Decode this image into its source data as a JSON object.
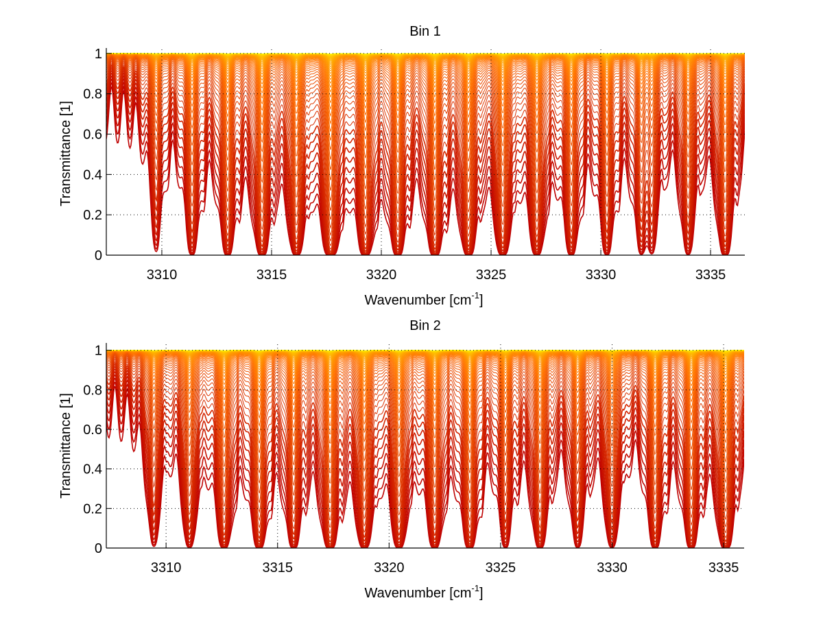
{
  "chart_data": [
    {
      "type": "line",
      "title": "Bin 1",
      "xlabel": "Wavenumber [cm",
      "xlabel_sup": "-1",
      "xlabel_end": "]",
      "ylabel": "Transmittance [1]",
      "xlim": [
        3307.47,
        3336.56
      ],
      "ylim": [
        0,
        1.02
      ],
      "xticks": [
        3310,
        3315,
        3320,
        3325,
        3330,
        3335
      ],
      "xtick_labels": [
        "3310",
        "3315",
        "3320",
        "3325",
        "3330",
        "3335"
      ],
      "yticks": [
        0,
        0.2,
        0.4,
        0.6,
        0.8,
        1
      ],
      "ytick_labels": [
        "0",
        "0.2",
        "0.4",
        "0.6",
        "0.8",
        "1"
      ],
      "grid": "dotted",
      "colormap": "autumn",
      "n_series": 60,
      "series_description": "Family of transmittance spectra T = exp(-k·τ(ν)), k spanning weak to strong absorption; colors run red (opaque) to yellow (transparent)",
      "absorption_lines": [
        {
          "center": 3309.75,
          "strength": 0.35
        },
        {
          "center": 3311.38,
          "strength": 0.6
        },
        {
          "center": 3313.0,
          "strength": 0.75
        },
        {
          "center": 3314.56,
          "strength": 0.9
        },
        {
          "center": 3316.13,
          "strength": 0.85
        },
        {
          "center": 3317.69,
          "strength": 1.2
        },
        {
          "center": 3319.28,
          "strength": 1.0
        },
        {
          "center": 3320.75,
          "strength": 0.9
        },
        {
          "center": 3322.44,
          "strength": 1.0
        },
        {
          "center": 3323.97,
          "strength": 0.9
        },
        {
          "center": 3325.53,
          "strength": 0.85
        },
        {
          "center": 3327.09,
          "strength": 0.8
        },
        {
          "center": 3328.66,
          "strength": 0.7
        },
        {
          "center": 3330.28,
          "strength": 0.6
        },
        {
          "center": 3331.84,
          "strength": 0.45
        },
        {
          "center": 3332.31,
          "strength": 0.4
        },
        {
          "center": 3333.97,
          "strength": 0.55
        },
        {
          "center": 3335.66,
          "strength": 0.8
        }
      ]
    },
    {
      "type": "line",
      "title": "Bin 2",
      "xlabel": "Wavenumber [cm",
      "xlabel_sup": "-1",
      "xlabel_end": "]",
      "ylabel": "Transmittance [1]",
      "xlim": [
        3307.32,
        3335.92
      ],
      "ylim": [
        0,
        1.03
      ],
      "xticks": [
        3310,
        3315,
        3320,
        3325,
        3330,
        3335
      ],
      "xtick_labels": [
        "3310",
        "3315",
        "3320",
        "3325",
        "3330",
        "3335"
      ],
      "yticks": [
        0,
        0.2,
        0.4,
        0.6,
        0.8,
        1
      ],
      "ytick_labels": [
        "0",
        "0.2",
        "0.4",
        "0.6",
        "0.8",
        "1"
      ],
      "grid": "dotted",
      "colormap": "autumn",
      "n_series": 60,
      "series_description": "Family of transmittance spectra T = exp(-k·τ(ν)), k spanning weak to strong absorption; colors run red (opaque) to yellow (transparent)",
      "absorption_lines": [
        {
          "center": 3309.45,
          "strength": 0.45
        },
        {
          "center": 3311.05,
          "strength": 0.6
        },
        {
          "center": 3312.61,
          "strength": 0.8
        },
        {
          "center": 3314.18,
          "strength": 0.85
        },
        {
          "center": 3315.72,
          "strength": 0.75
        },
        {
          "center": 3317.35,
          "strength": 1.0
        },
        {
          "center": 3318.89,
          "strength": 0.85
        },
        {
          "center": 3320.45,
          "strength": 0.8
        },
        {
          "center": 3322.05,
          "strength": 0.8
        },
        {
          "center": 3323.62,
          "strength": 0.85
        },
        {
          "center": 3325.22,
          "strength": 0.55
        },
        {
          "center": 3326.76,
          "strength": 0.75
        },
        {
          "center": 3328.45,
          "strength": 0.55
        },
        {
          "center": 3329.99,
          "strength": 0.6
        },
        {
          "center": 3331.93,
          "strength": 0.75
        },
        {
          "center": 3333.55,
          "strength": 0.8
        },
        {
          "center": 3335.09,
          "strength": 1.0
        }
      ]
    }
  ]
}
